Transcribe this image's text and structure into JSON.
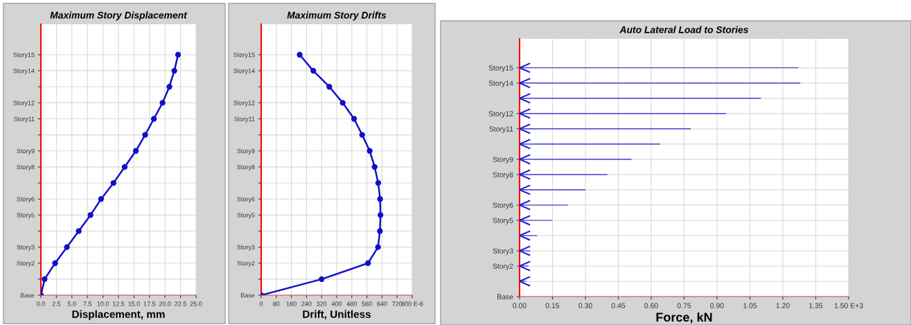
{
  "chart_data": [
    {
      "type": "line",
      "orientation": "horizontal",
      "title": "Maximum Story Displacement",
      "xlabel": "Displacement, mm",
      "marker": "circle",
      "grid": true,
      "categories": [
        "Story15",
        "Story14",
        null,
        "Story12",
        "Story11",
        null,
        "Story9",
        "Story8",
        null,
        "Story6",
        "Story5",
        null,
        "Story3",
        "Story2",
        null,
        "Base"
      ],
      "series": [
        {
          "color": "#1010c8",
          "values": [
            22.1,
            21.5,
            20.7,
            19.6,
            18.2,
            16.8,
            15.3,
            13.5,
            11.7,
            9.7,
            8.0,
            6.1,
            4.2,
            2.3,
            0.6,
            0
          ]
        }
      ],
      "xlim": [
        0,
        25
      ],
      "xticks": [
        {
          "value": 0,
          "label": "0.0"
        },
        2.5,
        {
          "value": 5,
          "label": "5.0"
        },
        7.5,
        {
          "value": 10,
          "label": "10.0"
        },
        12.5,
        {
          "value": 15,
          "label": "15.0"
        },
        17.5,
        {
          "value": 20,
          "label": "20.0"
        },
        22.5,
        {
          "value": 25,
          "label": "25.0"
        }
      ]
    },
    {
      "type": "line",
      "orientation": "horizontal",
      "title": "Maximum Story Drifts",
      "xlabel": "Drift, Unitless",
      "marker": "circle",
      "grid": true,
      "categories": [
        "Story15",
        "Story14",
        null,
        "Story12",
        "Story11",
        null,
        "Story9",
        "Story8",
        null,
        "Story6",
        "Story5",
        null,
        "Story3",
        "Story2",
        null,
        "Base"
      ],
      "series": [
        {
          "color": "#1010c8",
          "values": [
            204,
            276,
            361,
            432,
            492,
            535,
            575,
            601,
            620,
            630,
            632,
            629,
            619,
            566,
            320,
            0
          ]
        }
      ],
      "xlim": [
        0,
        800
      ],
      "xticks": [
        0,
        80,
        160,
        240,
        320,
        400,
        480,
        560,
        640,
        720,
        {
          "value": 800,
          "label": "800 E-6"
        }
      ]
    },
    {
      "type": "bar",
      "orientation": "horizontal",
      "title": "Auto Lateral Load to Stories",
      "xlabel": "Force, kN",
      "grid": true,
      "color": "#2020d0",
      "categories": [
        "Story15",
        "Story14",
        null,
        "Story12",
        "Story11",
        null,
        "Story9",
        "Story8",
        null,
        "Story6",
        "Story5",
        null,
        "Story3",
        "Story2",
        null,
        "Base"
      ],
      "values": [
        1.27,
        1.28,
        1.1,
        0.94,
        0.78,
        0.64,
        0.51,
        0.4,
        0.3,
        0.22,
        0.15,
        0.08,
        0.05,
        0.04,
        0.03,
        null
      ],
      "xlim": [
        0,
        1.5
      ],
      "xticks": [
        {
          "value": 0,
          "label": "0.00"
        },
        {
          "value": 0.15,
          "label": "0.15"
        },
        {
          "value": 0.3,
          "label": "0.30"
        },
        {
          "value": 0.45,
          "label": "0.45"
        },
        {
          "value": 0.6,
          "label": "0.60"
        },
        {
          "value": 0.75,
          "label": "0.75"
        },
        {
          "value": 0.9,
          "label": "0.90"
        },
        {
          "value": 1.05,
          "label": "1.05"
        },
        {
          "value": 1.2,
          "label": "1.20"
        },
        {
          "value": 1.35,
          "label": "1.35"
        },
        {
          "value": 1.5,
          "label": "1.50 E+3"
        }
      ]
    }
  ]
}
